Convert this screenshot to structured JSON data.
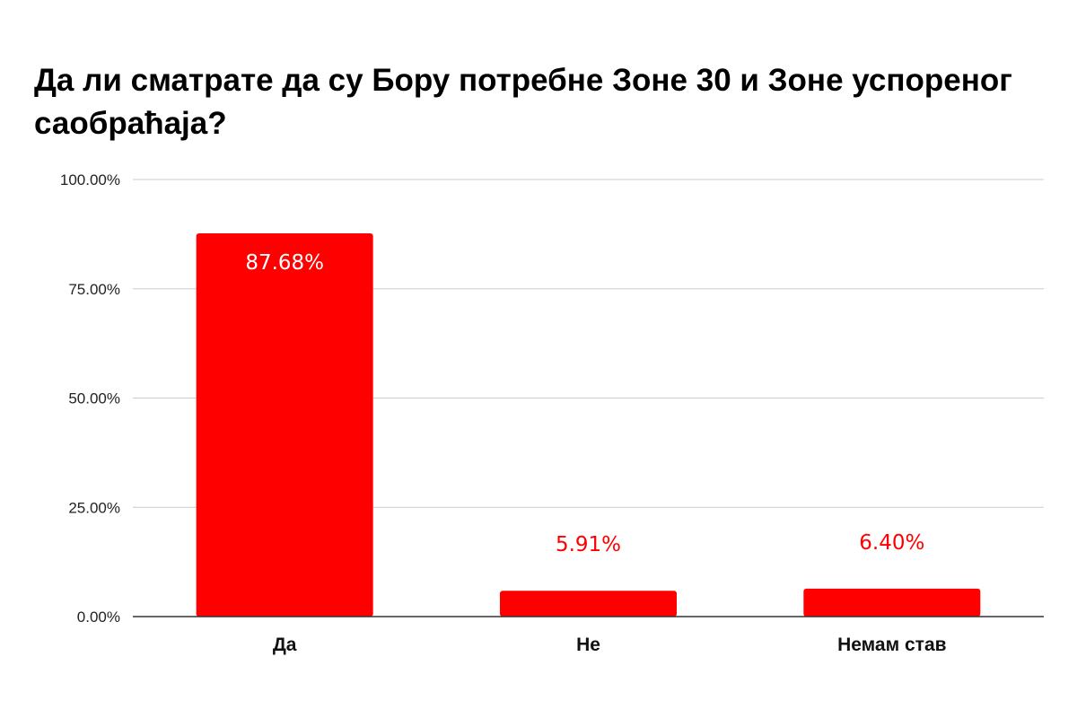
{
  "chart_data": {
    "type": "bar",
    "title": "Да ли сматрате да су Бору потребне Зоне 30 и Зоне успореног саобраћаја?",
    "categories": [
      "Да",
      "Не",
      "Немам став"
    ],
    "values": [
      87.68,
      5.91,
      6.4
    ],
    "value_labels": [
      "87.68%",
      "5.91%",
      "6.40%"
    ],
    "ylim": [
      0,
      100
    ],
    "yticks": [
      0,
      25,
      50,
      75,
      100
    ],
    "ytick_labels": [
      "0.00%",
      "25.00%",
      "50.00%",
      "75.00%",
      "100.00%"
    ],
    "xlabel": "",
    "ylabel": "",
    "grid": true,
    "legend": "none",
    "bar_color": "#ff0000",
    "inside_label_color": "#ffffff",
    "outside_label_color": "#ff0000"
  }
}
